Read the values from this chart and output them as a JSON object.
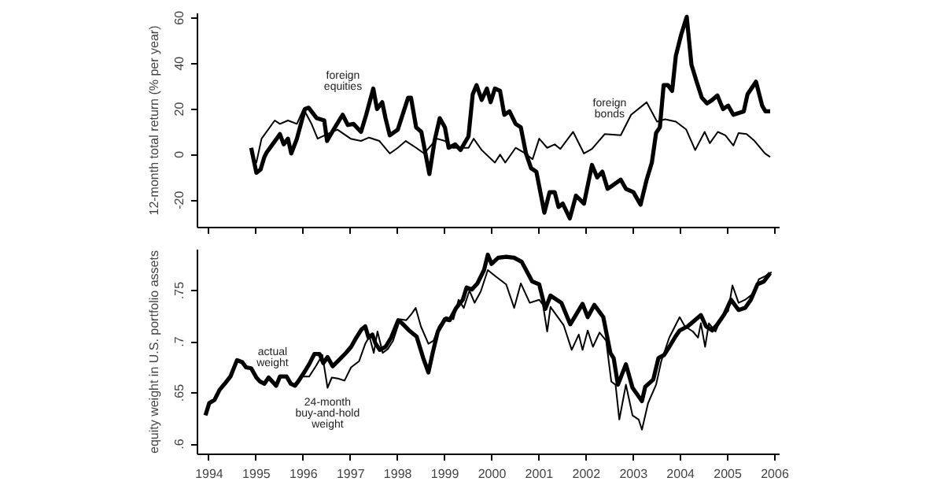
{
  "chart_data": [
    {
      "type": "line",
      "ylabel": "12-month total return (% per year)",
      "xlim": [
        1993.75,
        2006.1
      ],
      "xticks": [
        {
          "value": 1994,
          "label": null
        },
        {
          "value": 1995,
          "label": null
        },
        {
          "value": 1996,
          "label": null
        },
        {
          "value": 1997,
          "label": null
        },
        {
          "value": 1998,
          "label": null
        },
        {
          "value": 1999,
          "label": null
        },
        {
          "value": 2000,
          "label": null
        },
        {
          "value": 2001,
          "label": null
        },
        {
          "value": 2002,
          "label": null
        },
        {
          "value": 2003,
          "label": null
        },
        {
          "value": 2004,
          "label": null
        },
        {
          "value": 2005,
          "label": null
        },
        {
          "value": 2006,
          "label": null
        }
      ],
      "ylim": [
        -32,
        62
      ],
      "yticks": [
        -20,
        0,
        20,
        40,
        60
      ],
      "tick_labels": "y",
      "grid": false,
      "line_style": "solid",
      "marker": "none",
      "annotations": [
        "foreign\nequities",
        "foreign\nbonds"
      ],
      "series": [
        {
          "color": "#000000",
          "x": [
            1994.89,
            1995.0,
            1995.09,
            1995.17,
            1995.22,
            1995.5,
            1995.58,
            1995.67,
            1995.74,
            1995.86,
            1996.03,
            1996.11,
            1996.28,
            1996.44,
            1996.5,
            1996.61,
            1996.83,
            1996.94,
            1997.06,
            1997.22,
            1997.33,
            1997.48,
            1997.56,
            1997.67,
            1997.74,
            1997.83,
            1998.0,
            1998.22,
            1998.28,
            1998.39,
            1998.5,
            1998.67,
            1998.78,
            1998.89,
            1999.0,
            1999.08,
            1999.22,
            1999.33,
            1999.5,
            1999.59,
            1999.67,
            1999.78,
            1999.89,
            1999.97,
            2000.06,
            2000.17,
            2000.26,
            2000.37,
            2000.5,
            2000.61,
            2000.72,
            2000.83,
            2000.94,
            2001.11,
            2001.22,
            2001.33,
            2001.41,
            2001.5,
            2001.65,
            2001.78,
            2001.95,
            2002.12,
            2002.23,
            2002.34,
            2002.45,
            2002.56,
            2002.73,
            2002.84,
            2003.0,
            2003.15,
            2003.28,
            2003.39,
            2003.48,
            2003.56,
            2003.64,
            2003.73,
            2003.82,
            2003.9,
            2004.01,
            2004.13,
            2004.23,
            2004.34,
            2004.45,
            2004.56,
            2004.67,
            2004.78,
            2004.9,
            2005.01,
            2005.12,
            2005.34,
            2005.42,
            2005.6,
            2005.73,
            2005.8,
            2005.9
          ],
          "values": [
            3,
            -8,
            -6.5,
            -1,
            1,
            9,
            4.5,
            7,
            0.5,
            7,
            20,
            20.6,
            16,
            15,
            6,
            10,
            17.5,
            13,
            13.5,
            10,
            17.5,
            29,
            20,
            23,
            16,
            8.5,
            11,
            25,
            25,
            12,
            10,
            -8.5,
            6,
            16,
            12,
            3,
            4.5,
            2,
            8,
            26.5,
            30.5,
            24,
            29,
            23,
            29,
            28,
            17.5,
            19,
            13.5,
            12,
            0.5,
            -6,
            -7.5,
            -25.5,
            -16.5,
            -16.5,
            -23,
            -21.5,
            -28,
            -18,
            -21.5,
            -4.5,
            -10,
            -7.5,
            -15,
            -13.5,
            -11,
            -15,
            -16.5,
            -22,
            -11,
            -3.5,
            9.5,
            12,
            30.5,
            30.5,
            28,
            43.5,
            52.5,
            60.5,
            39.5,
            32,
            25,
            22.5,
            24,
            26,
            20,
            21.5,
            17.5,
            19,
            26.5,
            32,
            21.5,
            19,
            19
          ]
        },
        {
          "color": "#000000",
          "x": [
            1994.89,
            1995.0,
            1995.11,
            1995.39,
            1995.5,
            1995.67,
            1995.86,
            1996.0,
            1996.17,
            1996.3,
            1996.5,
            1996.72,
            1997.0,
            1997.22,
            1997.39,
            1997.61,
            1997.83,
            1998.0,
            1998.17,
            1998.39,
            1998.56,
            1998.83,
            1999.0,
            1999.17,
            1999.5,
            1999.61,
            1999.78,
            2000.06,
            2000.17,
            2000.28,
            2000.5,
            2000.67,
            2000.86,
            2001.0,
            2001.17,
            2001.33,
            2001.45,
            2001.72,
            2001.95,
            2002.12,
            2002.39,
            2002.73,
            2002.95,
            2003.28,
            2003.5,
            2003.67,
            2003.9,
            2004.12,
            2004.31,
            2004.51,
            2004.62,
            2004.79,
            2004.95,
            2005.12,
            2005.23,
            2005.4,
            2005.57,
            2005.79,
            2005.9
          ],
          "values": [
            0.5,
            -3.5,
            7,
            15,
            13.5,
            15,
            13.5,
            20,
            13.5,
            7,
            9,
            11,
            7,
            6,
            7.5,
            6,
            0.5,
            3,
            6,
            3,
            0.5,
            7,
            6,
            3,
            3,
            7,
            2,
            -3.5,
            0,
            -3.5,
            3,
            1,
            -2,
            7,
            3,
            4.5,
            2.5,
            10,
            0.5,
            2.5,
            9,
            8.5,
            17.5,
            23,
            14.5,
            15.5,
            14.5,
            11,
            2,
            10,
            5,
            10,
            8.5,
            4,
            9.5,
            9,
            6,
            0.5,
            -1
          ]
        }
      ]
    },
    {
      "type": "line",
      "ylabel": "equity weight in U.S. portfolio assets",
      "xlim": [
        1993.75,
        2006.1
      ],
      "xticks": [
        1994,
        1995,
        1996,
        1997,
        1998,
        1999,
        2000,
        2001,
        2002,
        2003,
        2004,
        2005,
        2006
      ],
      "ylim": [
        0.59,
        0.79
      ],
      "yticks": [
        {
          "value": 0.6,
          "label": ".6"
        },
        {
          "value": 0.65,
          "label": ".65"
        },
        {
          "value": 0.7,
          "label": ".7"
        },
        {
          "value": 0.75,
          "label": ".75"
        }
      ],
      "grid": false,
      "line_style": "solid",
      "marker": "none",
      "annotations": [
        "actual\nweight",
        "24-month\nbuy-and-hold\nweight"
      ],
      "series": [
        {
          "color": "#000000",
          "x": [
            1993.92,
            1994.0,
            1994.11,
            1994.22,
            1994.33,
            1994.45,
            1994.59,
            1994.7,
            1994.78,
            1994.89,
            1995.0,
            1995.08,
            1995.17,
            1995.26,
            1995.34,
            1995.42,
            1995.5,
            1995.64,
            1995.73,
            1995.82,
            1995.9,
            1996.0,
            1996.12,
            1996.23,
            1996.34,
            1996.42,
            1996.51,
            1996.62,
            1996.73,
            1996.9,
            1997.01,
            1997.12,
            1997.23,
            1997.31,
            1997.38,
            1997.46,
            1997.53,
            1997.62,
            1997.74,
            1997.86,
            1998.01,
            1998.09,
            1998.24,
            1998.4,
            1998.54,
            1998.65,
            1998.74,
            1998.85,
            1999.0,
            1999.1,
            1999.24,
            1999.38,
            1999.46,
            1999.57,
            1999.69,
            1999.83,
            1999.91,
            1999.99,
            2000.13,
            2000.3,
            2000.47,
            2000.63,
            2000.85,
            2001.0,
            2001.13,
            2001.24,
            2001.47,
            2001.66,
            2001.92,
            2002.03,
            2002.17,
            2002.36,
            2002.51,
            2002.58,
            2002.67,
            2002.84,
            2002.98,
            2003.18,
            2003.25,
            2003.42,
            2003.53,
            2003.65,
            2003.76,
            2003.89,
            2003.98,
            2004.15,
            2004.43,
            2004.54,
            2004.67,
            2004.78,
            2004.93,
            2005.07,
            2005.23,
            2005.37,
            2005.49,
            2005.63,
            2005.77,
            2005.9
          ],
          "values": [
            0.628,
            0.64,
            0.643,
            0.653,
            0.659,
            0.666,
            0.682,
            0.68,
            0.675,
            0.674,
            0.665,
            0.661,
            0.659,
            0.665,
            0.661,
            0.657,
            0.666,
            0.666,
            0.659,
            0.657,
            0.662,
            0.669,
            0.678,
            0.688,
            0.688,
            0.679,
            0.685,
            0.676,
            0.681,
            0.689,
            0.695,
            0.704,
            0.712,
            0.715,
            0.704,
            0.707,
            0.698,
            0.692,
            0.695,
            0.704,
            0.721,
            0.718,
            0.711,
            0.705,
            0.684,
            0.67,
            0.689,
            0.71,
            0.722,
            0.721,
            0.733,
            0.741,
            0.753,
            0.751,
            0.757,
            0.77,
            0.785,
            0.776,
            0.782,
            0.783,
            0.782,
            0.778,
            0.759,
            0.756,
            0.732,
            0.745,
            0.738,
            0.717,
            0.737,
            0.724,
            0.736,
            0.724,
            0.689,
            0.684,
            0.658,
            0.678,
            0.655,
            0.642,
            0.656,
            0.663,
            0.684,
            0.687,
            0.695,
            0.705,
            0.711,
            0.715,
            0.726,
            0.715,
            0.711,
            0.717,
            0.727,
            0.741,
            0.731,
            0.733,
            0.741,
            0.756,
            0.759,
            0.767
          ]
        },
        {
          "color": "#000000",
          "x": [
            1996.0,
            1996.12,
            1996.26,
            1996.4,
            1996.51,
            1996.6,
            1996.73,
            1996.87,
            1997.01,
            1997.18,
            1997.31,
            1997.4,
            1997.49,
            1997.57,
            1997.68,
            1997.79,
            1997.9,
            1998.05,
            1998.18,
            1998.29,
            1998.38,
            1998.49,
            1998.65,
            1998.76,
            1998.87,
            1999.02,
            1999.18,
            1999.29,
            1999.4,
            1999.52,
            1999.63,
            1999.76,
            1999.91,
            2000.07,
            2000.3,
            2000.47,
            2000.61,
            2000.8,
            2001.0,
            2001.08,
            2001.17,
            2001.24,
            2001.52,
            2001.69,
            2001.84,
            2001.92,
            2002.03,
            2002.14,
            2002.28,
            2002.42,
            2002.53,
            2002.62,
            2002.7,
            2002.84,
            2002.98,
            2003.11,
            2003.18,
            2003.31,
            2003.48,
            2003.59,
            2003.76,
            2003.98,
            2004.09,
            2004.26,
            2004.37,
            2004.43,
            2004.52,
            2004.6,
            2004.74,
            2004.87,
            2005.01,
            2005.1,
            2005.23,
            2005.37,
            2005.54,
            2005.66,
            2005.79,
            2005.93
          ],
          "values": [
            0.666,
            0.666,
            0.676,
            0.687,
            0.655,
            0.665,
            0.664,
            0.662,
            0.675,
            0.681,
            0.698,
            0.705,
            0.689,
            0.71,
            0.689,
            0.693,
            0.701,
            0.722,
            0.721,
            0.727,
            0.733,
            0.715,
            0.698,
            0.701,
            0.715,
            0.724,
            0.722,
            0.741,
            0.733,
            0.75,
            0.738,
            0.749,
            0.77,
            0.764,
            0.756,
            0.733,
            0.757,
            0.738,
            0.741,
            0.736,
            0.71,
            0.734,
            0.716,
            0.692,
            0.707,
            0.692,
            0.711,
            0.695,
            0.709,
            0.701,
            0.661,
            0.658,
            0.624,
            0.658,
            0.628,
            0.624,
            0.614,
            0.64,
            0.658,
            0.681,
            0.704,
            0.724,
            0.715,
            0.71,
            0.704,
            0.718,
            0.695,
            0.718,
            0.71,
            0.724,
            0.73,
            0.755,
            0.738,
            0.741,
            0.747,
            0.761,
            0.764,
            0.768
          ]
        }
      ]
    }
  ]
}
